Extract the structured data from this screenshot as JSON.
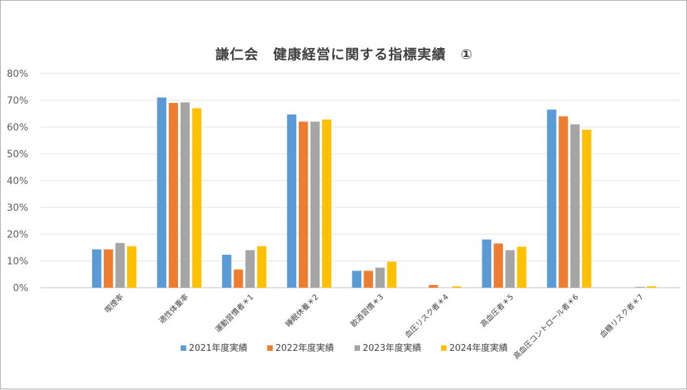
{
  "chart_data": {
    "type": "bar",
    "title": "謙仁会　健康経営に関する指標実績　①",
    "categories": [
      "喫煙率",
      "適性体重率",
      "運動習慣者＊1",
      "睡眠休養＊2",
      "飲酒習慣＊3",
      "血圧リスク者＊4",
      "高血圧者＊5",
      "高血圧コントロール者＊6",
      "血糖リスク者＊7"
    ],
    "series": [
      {
        "name": "2021年度実績",
        "color": "#5b9bd5",
        "values": [
          14.3,
          71.0,
          12.3,
          64.7,
          6.3,
          0.0,
          18.0,
          66.5,
          0.0
        ]
      },
      {
        "name": "2022年度実績",
        "color": "#ed7d31",
        "values": [
          14.3,
          69.0,
          6.8,
          62.0,
          6.3,
          1.0,
          16.5,
          64.0,
          0.0
        ]
      },
      {
        "name": "2023年度実績",
        "color": "#a5a5a5",
        "values": [
          16.7,
          69.2,
          14.0,
          62.0,
          7.5,
          0.0,
          14.0,
          61.0,
          0.3
        ]
      },
      {
        "name": "2024年度実績",
        "color": "#ffc000",
        "values": [
          15.5,
          67.0,
          15.5,
          62.8,
          9.7,
          0.5,
          15.3,
          59.0,
          0.5
        ]
      }
    ],
    "ylim": [
      0,
      80
    ],
    "yticks": [
      "0%",
      "10%",
      "20%",
      "30%",
      "40%",
      "50%",
      "60%",
      "70%",
      "80%"
    ],
    "grid": true,
    "legend_position": "bottom"
  }
}
